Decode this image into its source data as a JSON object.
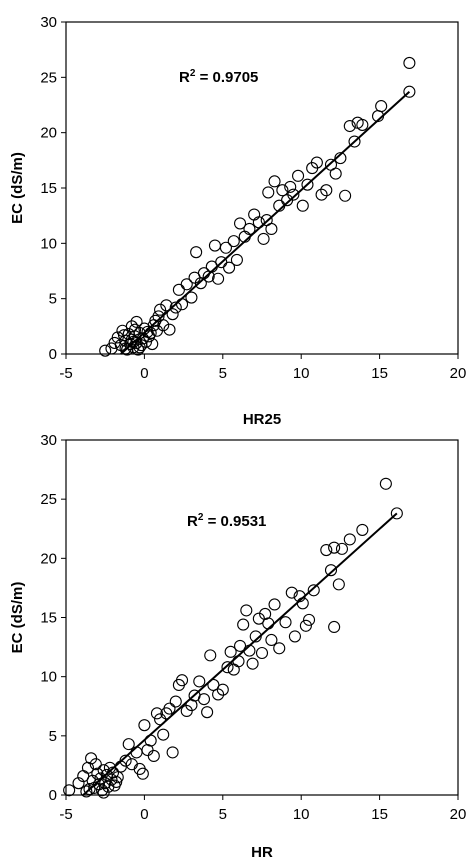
{
  "chart_data": [
    {
      "type": "scatter",
      "xlabel": "HR25",
      "ylabel": "EC (dS/m)",
      "annotation": {
        "prefix": "R",
        "sup": "2",
        "suffix": " = 0.9705"
      },
      "xlim": [
        -5,
        20
      ],
      "ylim": [
        0,
        30
      ],
      "xticks": [
        -5,
        0,
        5,
        10,
        15,
        20
      ],
      "yticks": [
        0,
        5,
        10,
        15,
        20,
        25,
        30
      ],
      "grid": false,
      "fit_line": {
        "x": [
          -1.5,
          16.9
        ],
        "y": [
          0.0,
          23.7
        ]
      },
      "points": [
        [
          -2.5,
          0.3
        ],
        [
          -2.1,
          0.5
        ],
        [
          -1.9,
          1.0
        ],
        [
          -1.7,
          1.5
        ],
        [
          -1.5,
          0.8
        ],
        [
          -1.4,
          2.1
        ],
        [
          -1.2,
          1.2
        ],
        [
          -1.1,
          0.4
        ],
        [
          -1.0,
          1.8
        ],
        [
          -0.9,
          0.9
        ],
        [
          -0.8,
          2.5
        ],
        [
          -0.8,
          1.3
        ],
        [
          -0.7,
          0.6
        ],
        [
          -0.6,
          1.6
        ],
        [
          -0.5,
          2.9
        ],
        [
          -0.5,
          1.0
        ],
        [
          -0.4,
          0.4
        ],
        [
          -0.3,
          1.9
        ],
        [
          -0.2,
          0.8
        ],
        [
          -0.1,
          1.4
        ],
        [
          0.0,
          2.3
        ],
        [
          0.1,
          1.1
        ],
        [
          0.2,
          2.0
        ],
        [
          0.3,
          1.6
        ],
        [
          0.5,
          0.9
        ],
        [
          0.6,
          2.6
        ],
        [
          0.7,
          3.0
        ],
        [
          0.9,
          3.4
        ],
        [
          1.0,
          4.0
        ],
        [
          1.2,
          2.6
        ],
        [
          1.4,
          4.4
        ],
        [
          1.6,
          2.2
        ],
        [
          1.8,
          3.6
        ],
        [
          2.0,
          4.2
        ],
        [
          2.2,
          5.8
        ],
        [
          2.4,
          4.5
        ],
        [
          2.7,
          6.3
        ],
        [
          3.0,
          5.1
        ],
        [
          3.2,
          6.9
        ],
        [
          3.3,
          9.2
        ],
        [
          3.6,
          6.4
        ],
        [
          3.8,
          7.3
        ],
        [
          4.1,
          7.0
        ],
        [
          4.3,
          7.9
        ],
        [
          4.5,
          9.8
        ],
        [
          4.7,
          6.8
        ],
        [
          4.9,
          8.3
        ],
        [
          5.2,
          9.6
        ],
        [
          5.4,
          7.8
        ],
        [
          5.7,
          10.2
        ],
        [
          5.9,
          8.5
        ],
        [
          6.1,
          11.8
        ],
        [
          6.4,
          10.6
        ],
        [
          6.7,
          11.3
        ],
        [
          7.0,
          12.6
        ],
        [
          7.3,
          11.9
        ],
        [
          7.6,
          10.4
        ],
        [
          7.8,
          12.1
        ],
        [
          7.9,
          14.6
        ],
        [
          8.1,
          11.3
        ],
        [
          8.3,
          15.6
        ],
        [
          8.6,
          13.4
        ],
        [
          8.8,
          14.8
        ],
        [
          9.1,
          13.9
        ],
        [
          9.3,
          15.1
        ],
        [
          9.5,
          14.4
        ],
        [
          9.8,
          16.1
        ],
        [
          10.1,
          13.4
        ],
        [
          10.4,
          15.3
        ],
        [
          10.7,
          16.8
        ],
        [
          11.0,
          17.3
        ],
        [
          11.3,
          14.4
        ],
        [
          11.6,
          14.8
        ],
        [
          11.9,
          17.1
        ],
        [
          12.2,
          16.3
        ],
        [
          12.5,
          17.7
        ],
        [
          12.8,
          14.3
        ],
        [
          13.1,
          20.6
        ],
        [
          13.4,
          19.2
        ],
        [
          13.6,
          20.9
        ],
        [
          13.9,
          20.7
        ],
        [
          14.9,
          21.5
        ],
        [
          15.1,
          22.4
        ],
        [
          16.9,
          23.7
        ],
        [
          16.9,
          26.3
        ],
        [
          -0.7,
          1.1
        ],
        [
          -0.3,
          0.6
        ],
        [
          -1.2,
          0.5
        ],
        [
          -0.6,
          2.2
        ],
        [
          0.4,
          1.9
        ],
        [
          -1.3,
          1.7
        ],
        [
          0.8,
          2.1
        ]
      ]
    },
    {
      "type": "scatter",
      "xlabel": "HR",
      "ylabel": "EC (dS/m)",
      "annotation": {
        "prefix": "R",
        "sup": "2",
        "suffix": " = 0.9531"
      },
      "xlim": [
        -5,
        20
      ],
      "ylim": [
        0,
        30
      ],
      "xticks": [
        -5,
        0,
        5,
        10,
        15,
        20
      ],
      "yticks": [
        0,
        5,
        10,
        15,
        20,
        25,
        30
      ],
      "grid": false,
      "fit_line": {
        "x": [
          -3.9,
          16.1
        ],
        "y": [
          0.0,
          23.8
        ]
      },
      "points": [
        [
          -4.8,
          0.4
        ],
        [
          -4.2,
          1.0
        ],
        [
          -3.9,
          1.6
        ],
        [
          -3.7,
          0.3
        ],
        [
          -3.6,
          2.3
        ],
        [
          -3.4,
          3.1
        ],
        [
          -3.3,
          1.2
        ],
        [
          -3.2,
          0.6
        ],
        [
          -3.1,
          2.6
        ],
        [
          -3.0,
          1.8
        ],
        [
          -2.9,
          0.9
        ],
        [
          -2.8,
          1.4
        ],
        [
          -2.7,
          0.4
        ],
        [
          -2.6,
          2.1
        ],
        [
          -2.5,
          1.0
        ],
        [
          -2.4,
          1.7
        ],
        [
          -2.3,
          0.7
        ],
        [
          -2.2,
          2.3
        ],
        [
          -2.1,
          1.3
        ],
        [
          -2.0,
          1.9
        ],
        [
          -1.9,
          0.8
        ],
        [
          -1.7,
          1.5
        ],
        [
          -1.5,
          2.4
        ],
        [
          -1.2,
          2.9
        ],
        [
          -1.0,
          4.3
        ],
        [
          -0.8,
          2.6
        ],
        [
          -0.5,
          3.6
        ],
        [
          -0.3,
          2.2
        ],
        [
          -0.1,
          1.8
        ],
        [
          0.0,
          5.9
        ],
        [
          0.2,
          3.8
        ],
        [
          0.4,
          4.6
        ],
        [
          0.6,
          3.3
        ],
        [
          0.8,
          6.9
        ],
        [
          1.0,
          6.4
        ],
        [
          1.2,
          5.1
        ],
        [
          1.4,
          6.9
        ],
        [
          1.6,
          7.3
        ],
        [
          1.8,
          3.6
        ],
        [
          2.0,
          7.9
        ],
        [
          2.2,
          9.3
        ],
        [
          2.4,
          9.7
        ],
        [
          2.7,
          7.1
        ],
        [
          3.0,
          7.6
        ],
        [
          3.2,
          8.4
        ],
        [
          3.5,
          9.6
        ],
        [
          3.8,
          8.1
        ],
        [
          4.0,
          7.0
        ],
        [
          4.2,
          11.8
        ],
        [
          4.4,
          9.3
        ],
        [
          4.7,
          8.5
        ],
        [
          5.0,
          8.9
        ],
        [
          5.3,
          10.8
        ],
        [
          5.5,
          12.1
        ],
        [
          5.7,
          10.6
        ],
        [
          6.0,
          11.3
        ],
        [
          6.1,
          12.6
        ],
        [
          6.3,
          14.4
        ],
        [
          6.5,
          15.6
        ],
        [
          6.7,
          12.2
        ],
        [
          6.9,
          11.1
        ],
        [
          7.1,
          13.4
        ],
        [
          7.3,
          14.9
        ],
        [
          7.5,
          12.0
        ],
        [
          7.7,
          15.3
        ],
        [
          7.9,
          14.5
        ],
        [
          8.1,
          13.1
        ],
        [
          8.3,
          16.1
        ],
        [
          8.6,
          12.4
        ],
        [
          9.0,
          14.6
        ],
        [
          9.4,
          17.1
        ],
        [
          9.6,
          13.4
        ],
        [
          9.9,
          16.8
        ],
        [
          10.1,
          16.2
        ],
        [
          10.3,
          14.3
        ],
        [
          10.5,
          14.8
        ],
        [
          10.8,
          17.3
        ],
        [
          11.6,
          20.7
        ],
        [
          11.9,
          19.0
        ],
        [
          12.1,
          14.2
        ],
        [
          12.1,
          20.9
        ],
        [
          12.4,
          17.8
        ],
        [
          12.6,
          20.8
        ],
        [
          13.1,
          21.6
        ],
        [
          13.9,
          22.4
        ],
        [
          15.4,
          26.3
        ],
        [
          16.1,
          23.8
        ],
        [
          -2.6,
          0.2
        ],
        [
          -1.8,
          1.1
        ],
        [
          -3.5,
          0.5
        ]
      ]
    }
  ]
}
